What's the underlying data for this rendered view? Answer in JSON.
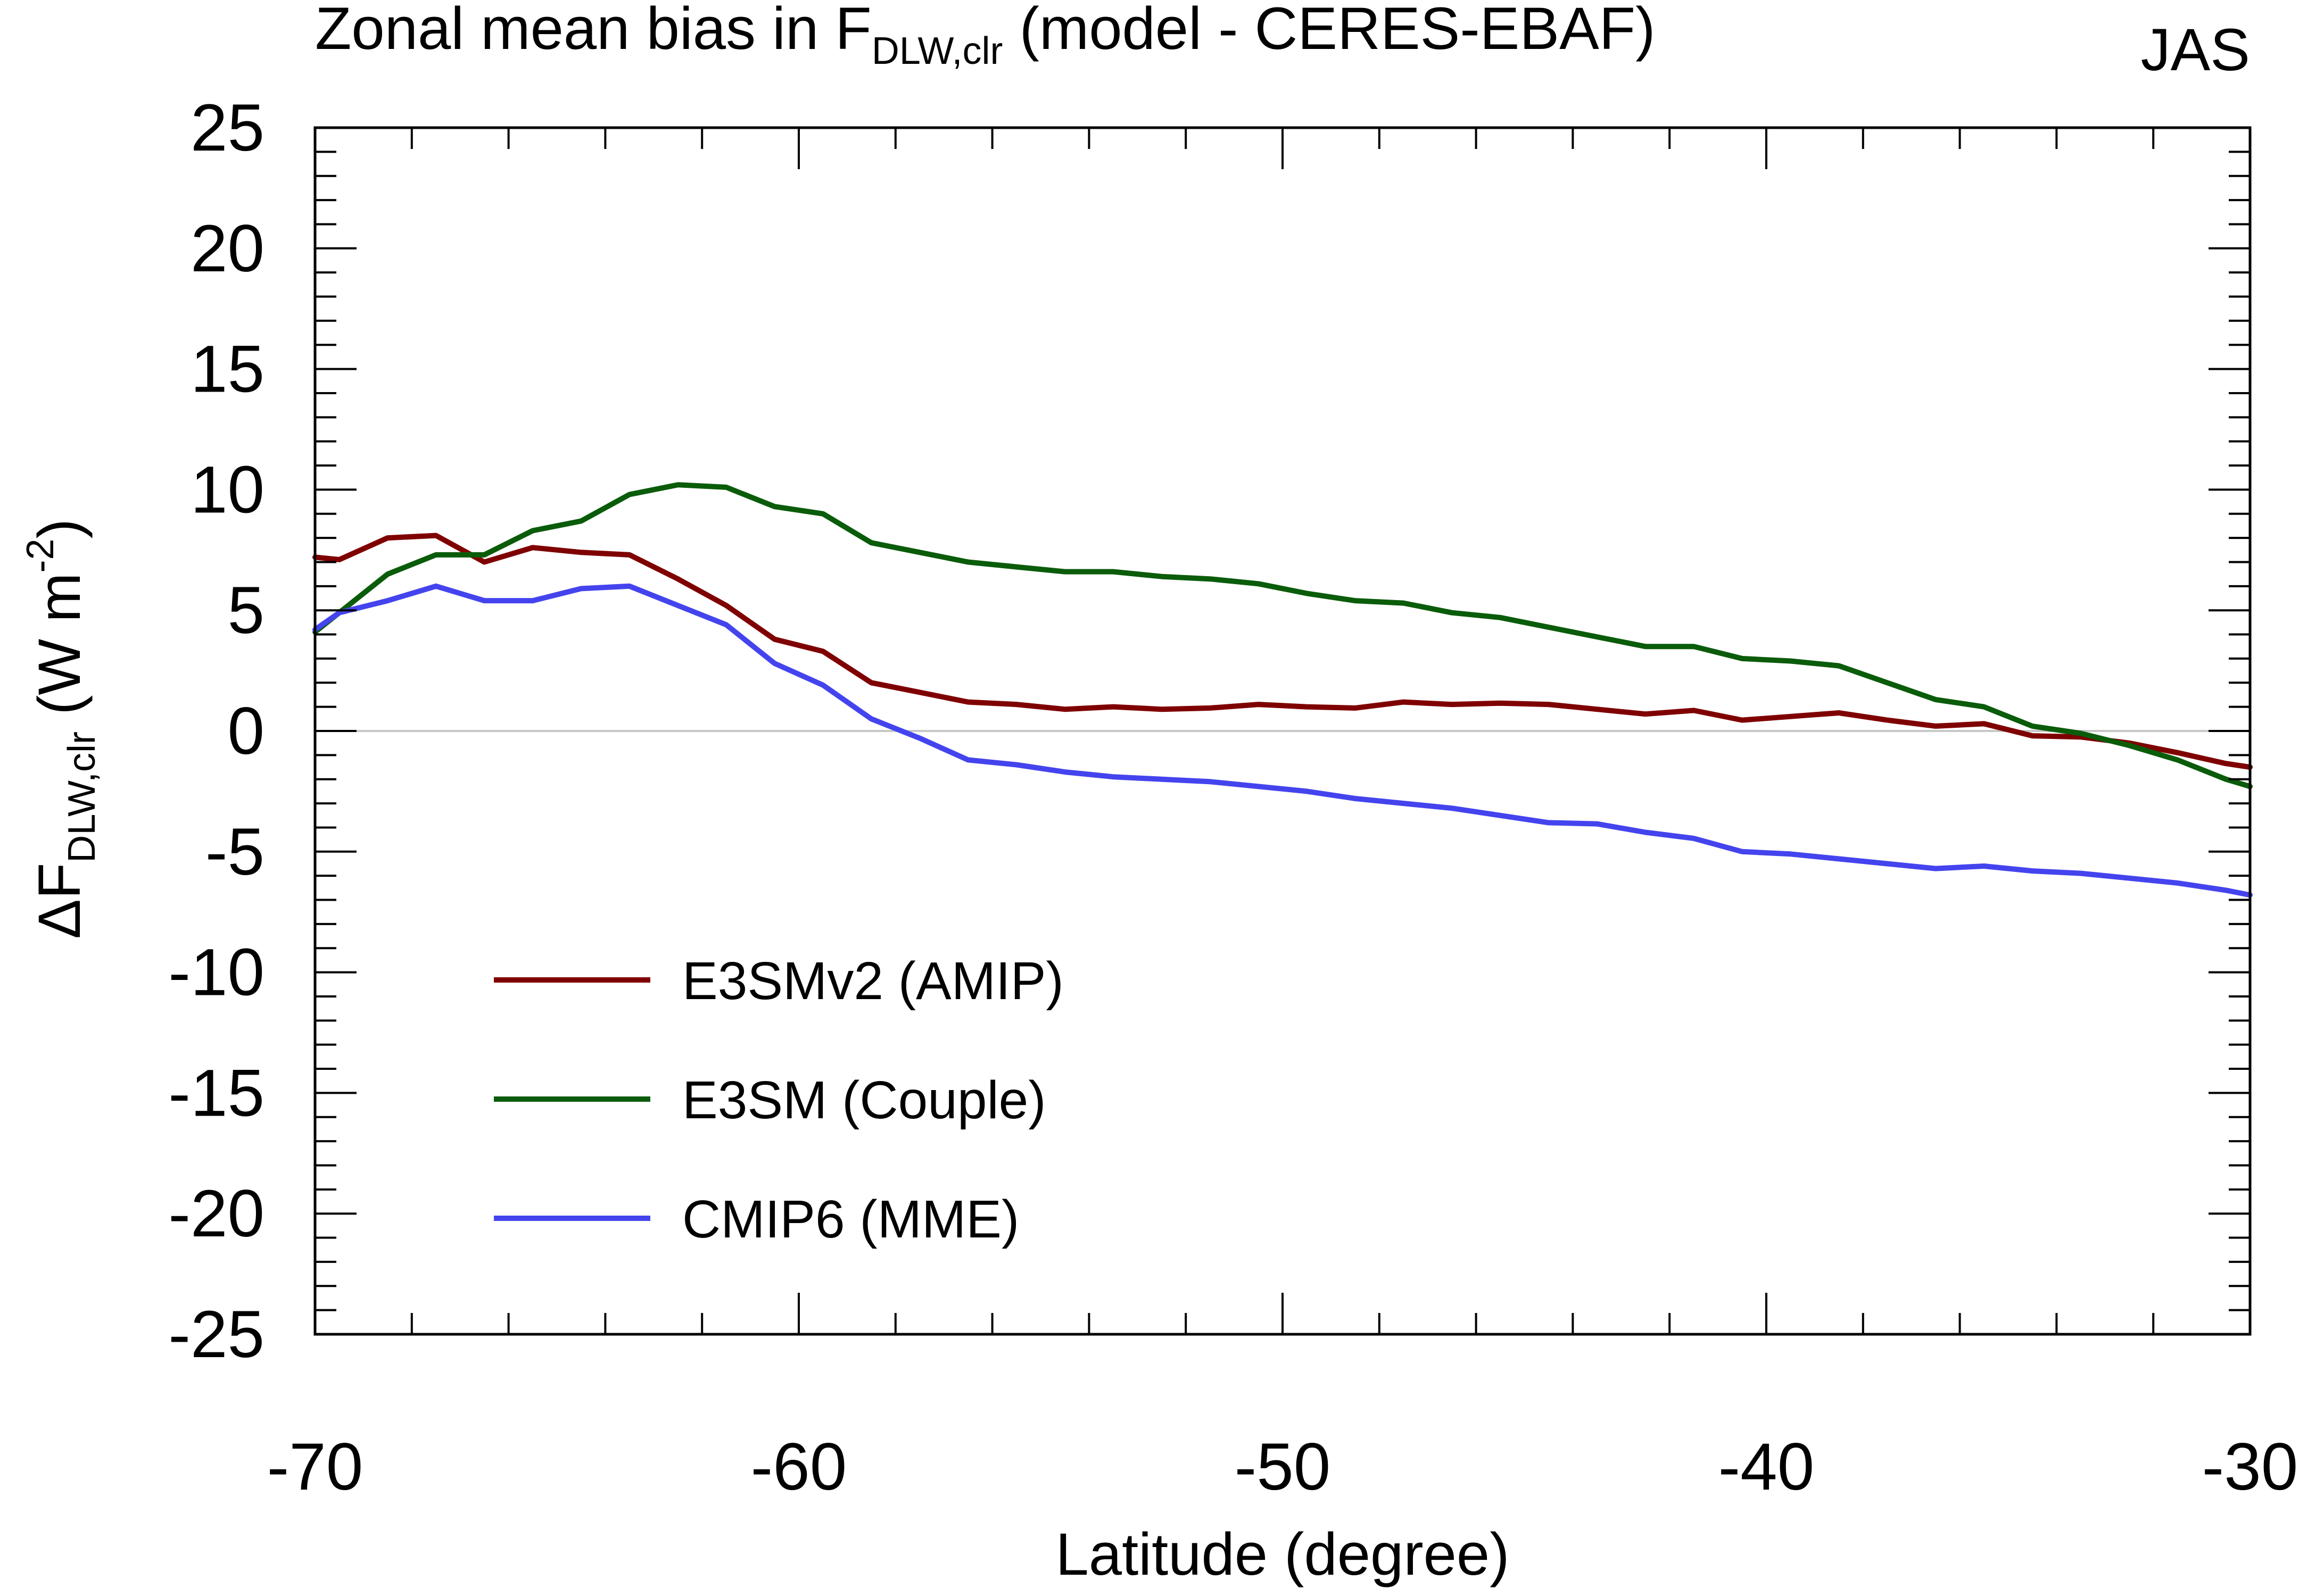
{
  "chart_data": {
    "type": "line",
    "title": {
      "prefix": "Zonal mean bias in F",
      "subscript": "DLW,clr",
      "suffix": " (model - CERES-EBAF)"
    },
    "season": "JAS",
    "xlabel": "Latitude (degree)",
    "ylabel": {
      "prefix": "ΔF",
      "subscript": "DLW,clr",
      "middle": " (W m",
      "superscript": "-2",
      "suffix": ")"
    },
    "xlim": [
      -70,
      -30
    ],
    "ylim": [
      -25,
      25
    ],
    "xticks": [
      -70,
      -60,
      -50,
      -40,
      -30
    ],
    "yticks": [
      25,
      20,
      15,
      10,
      5,
      0,
      -5,
      -10,
      -15,
      -20,
      -25
    ],
    "x": [
      -70,
      -69.5,
      -68.5,
      -67.5,
      -66.5,
      -65.5,
      -64.5,
      -63.5,
      -62.5,
      -61.5,
      -60.5,
      -59.5,
      -58.5,
      -57.5,
      -56.5,
      -55.5,
      -54.5,
      -53.5,
      -52.5,
      -51.5,
      -50.5,
      -49.5,
      -48.5,
      -47.5,
      -46.5,
      -45.5,
      -44.5,
      -43.5,
      -42.5,
      -41.5,
      -40.5,
      -39.5,
      -38.5,
      -37.5,
      -36.5,
      -35.5,
      -34.5,
      -33.5,
      -32.5,
      -31.5,
      -30.5,
      -30
    ],
    "series": [
      {
        "name": "E3SMv2 (AMIP)",
        "color": "#7f0000",
        "values": [
          7.2,
          7.1,
          8.0,
          8.1,
          7.0,
          7.6,
          7.4,
          7.3,
          6.3,
          5.2,
          3.8,
          3.3,
          2.0,
          1.6,
          1.2,
          1.1,
          0.9,
          1.0,
          0.9,
          0.95,
          1.1,
          1.0,
          0.95,
          1.2,
          1.1,
          1.15,
          1.1,
          0.9,
          0.7,
          0.85,
          0.45,
          0.6,
          0.75,
          0.45,
          0.2,
          0.3,
          -0.2,
          -0.25,
          -0.5,
          -0.9,
          -1.35,
          -1.5
        ]
      },
      {
        "name": "E3SM (Couple)",
        "color": "#0a5c0a",
        "values": [
          4.1,
          4.9,
          6.5,
          7.3,
          7.3,
          8.3,
          8.7,
          9.8,
          10.2,
          10.1,
          9.3,
          9.0,
          7.8,
          7.4,
          7.0,
          6.8,
          6.6,
          6.6,
          6.4,
          6.3,
          6.1,
          5.7,
          5.4,
          5.3,
          4.9,
          4.7,
          4.3,
          3.9,
          3.5,
          3.5,
          3.0,
          2.9,
          2.7,
          2.0,
          1.3,
          1.0,
          0.2,
          -0.1,
          -0.6,
          -1.2,
          -2.0,
          -2.3
        ]
      },
      {
        "name": "CMIP6 (MME)",
        "color": "#4444ee",
        "values": [
          4.2,
          4.9,
          5.4,
          6.0,
          5.4,
          5.4,
          5.9,
          6.0,
          5.2,
          4.4,
          2.8,
          1.9,
          0.5,
          -0.3,
          -1.2,
          -1.4,
          -1.7,
          -1.9,
          -2.0,
          -2.1,
          -2.3,
          -2.5,
          -2.8,
          -3.0,
          -3.2,
          -3.5,
          -3.8,
          -3.85,
          -4.2,
          -4.45,
          -5.0,
          -5.1,
          -5.3,
          -5.5,
          -5.7,
          -5.6,
          -5.8,
          -5.9,
          -6.1,
          -6.3,
          -6.6,
          -6.8
        ]
      }
    ],
    "legend_position": "lower-left"
  }
}
